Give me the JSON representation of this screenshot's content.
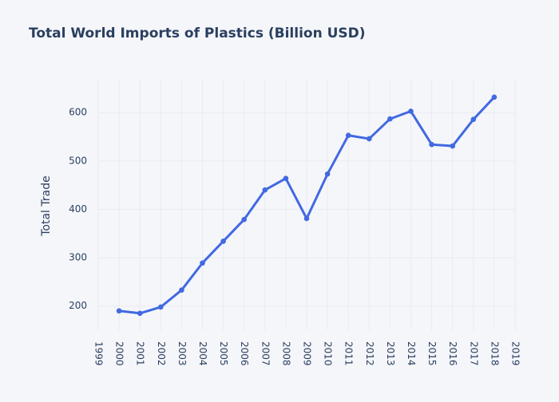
{
  "chart_data": {
    "type": "line",
    "title": "Total World Imports of Plastics (Billion USD)",
    "xlabel": "",
    "ylabel": "Total Trade",
    "xlim": [
      1999,
      2019
    ],
    "ylim": [
      150,
      668
    ],
    "x_ticks": [
      1999,
      2000,
      2001,
      2002,
      2003,
      2004,
      2005,
      2006,
      2007,
      2008,
      2009,
      2010,
      2011,
      2012,
      2013,
      2014,
      2015,
      2016,
      2017,
      2018,
      2019
    ],
    "y_ticks": [
      200,
      300,
      400,
      500,
      600
    ],
    "grid": true,
    "legend": "none",
    "series": [
      {
        "color": "#4169e1",
        "x": [
          2000,
          2001,
          2002,
          2003,
          2004,
          2005,
          2006,
          2007,
          2008,
          2009,
          2010,
          2011,
          2012,
          2013,
          2014,
          2015,
          2016,
          2017,
          2018
        ],
        "y": [
          190,
          185,
          198,
          233,
          289,
          334,
          379,
          440,
          464,
          381,
          473,
          553,
          546,
          587,
          603,
          534,
          531,
          586,
          632
        ]
      }
    ]
  }
}
